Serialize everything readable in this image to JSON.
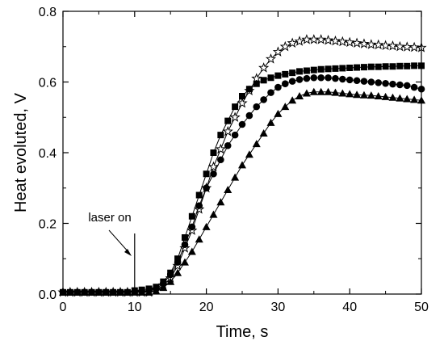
{
  "chart_data": {
    "type": "line",
    "title": "",
    "xlabel": "Time, s",
    "ylabel": "Heat evoluted, V",
    "xlim": [
      0,
      50
    ],
    "ylim": [
      0,
      0.8
    ],
    "xticks": [
      "0",
      "10",
      "20",
      "30",
      "40",
      "50"
    ],
    "yticks": [
      "0.0",
      "0.2",
      "0.4",
      "0.6",
      "0.8"
    ],
    "grid": false,
    "legend": "none",
    "annotations": [
      {
        "text": "laser on",
        "x": 10
      }
    ],
    "series": [
      {
        "marker": "star",
        "x": [
          0,
          1,
          2,
          3,
          4,
          5,
          6,
          7,
          8,
          9,
          10,
          11,
          12,
          13,
          14,
          15,
          16,
          17,
          18,
          19,
          20,
          21,
          22,
          23,
          24,
          25,
          26,
          27,
          28,
          29,
          30,
          31,
          32,
          33,
          34,
          35,
          36,
          37,
          38,
          39,
          40,
          41,
          42,
          43,
          44,
          45,
          46,
          47,
          48,
          49,
          50
        ],
        "values": [
          0.005,
          0.005,
          0.005,
          0.005,
          0.005,
          0.005,
          0.005,
          0.005,
          0.005,
          0.005,
          0.005,
          0.005,
          0.005,
          0.012,
          0.025,
          0.045,
          0.08,
          0.13,
          0.18,
          0.24,
          0.3,
          0.36,
          0.41,
          0.46,
          0.5,
          0.54,
          0.575,
          0.61,
          0.64,
          0.665,
          0.685,
          0.7,
          0.71,
          0.715,
          0.72,
          0.72,
          0.72,
          0.718,
          0.716,
          0.714,
          0.712,
          0.71,
          0.708,
          0.706,
          0.705,
          0.703,
          0.702,
          0.7,
          0.699,
          0.698,
          0.697
        ]
      },
      {
        "marker": "square",
        "x": [
          0,
          1,
          2,
          3,
          4,
          5,
          6,
          7,
          8,
          9,
          10,
          11,
          12,
          13,
          14,
          15,
          16,
          17,
          18,
          19,
          20,
          21,
          22,
          23,
          24,
          25,
          26,
          27,
          28,
          29,
          30,
          31,
          32,
          33,
          34,
          35,
          36,
          37,
          38,
          39,
          40,
          41,
          42,
          43,
          44,
          45,
          46,
          47,
          48,
          49,
          50
        ],
        "values": [
          0.005,
          0.005,
          0.005,
          0.005,
          0.005,
          0.005,
          0.005,
          0.005,
          0.005,
          0.005,
          0.01,
          0.012,
          0.015,
          0.02,
          0.035,
          0.06,
          0.1,
          0.16,
          0.22,
          0.28,
          0.34,
          0.4,
          0.45,
          0.49,
          0.53,
          0.56,
          0.58,
          0.595,
          0.605,
          0.612,
          0.618,
          0.622,
          0.626,
          0.63,
          0.632,
          0.634,
          0.636,
          0.637,
          0.638,
          0.639,
          0.64,
          0.641,
          0.642,
          0.643,
          0.643,
          0.644,
          0.644,
          0.645,
          0.645,
          0.646,
          0.646
        ]
      },
      {
        "marker": "circle",
        "x": [
          0,
          1,
          2,
          3,
          4,
          5,
          6,
          7,
          8,
          9,
          10,
          11,
          12,
          13,
          14,
          15,
          16,
          17,
          18,
          19,
          20,
          21,
          22,
          23,
          24,
          25,
          26,
          27,
          28,
          29,
          30,
          31,
          32,
          33,
          34,
          35,
          36,
          37,
          38,
          39,
          40,
          41,
          42,
          43,
          44,
          45,
          46,
          47,
          48,
          49,
          50
        ],
        "values": [
          0.005,
          0.005,
          0.005,
          0.005,
          0.005,
          0.005,
          0.005,
          0.005,
          0.005,
          0.005,
          0.007,
          0.008,
          0.01,
          0.015,
          0.03,
          0.055,
          0.09,
          0.14,
          0.19,
          0.25,
          0.3,
          0.34,
          0.38,
          0.42,
          0.45,
          0.48,
          0.505,
          0.53,
          0.55,
          0.57,
          0.585,
          0.595,
          0.602,
          0.607,
          0.61,
          0.612,
          0.612,
          0.612,
          0.61,
          0.608,
          0.606,
          0.604,
          0.602,
          0.6,
          0.598,
          0.596,
          0.594,
          0.592,
          0.59,
          0.585,
          0.58
        ]
      },
      {
        "marker": "triangle",
        "x": [
          0,
          1,
          2,
          3,
          4,
          5,
          6,
          7,
          8,
          9,
          10,
          11,
          12,
          13,
          14,
          15,
          16,
          17,
          18,
          19,
          20,
          21,
          22,
          23,
          24,
          25,
          26,
          27,
          28,
          29,
          30,
          31,
          32,
          33,
          34,
          35,
          36,
          37,
          38,
          39,
          40,
          41,
          42,
          43,
          44,
          45,
          46,
          47,
          48,
          49,
          50
        ],
        "values": [
          0.005,
          0.005,
          0.005,
          0.005,
          0.005,
          0.005,
          0.005,
          0.005,
          0.005,
          0.005,
          0.005,
          0.005,
          0.005,
          0.008,
          0.018,
          0.035,
          0.06,
          0.09,
          0.12,
          0.155,
          0.19,
          0.225,
          0.26,
          0.295,
          0.33,
          0.365,
          0.395,
          0.425,
          0.455,
          0.485,
          0.51,
          0.53,
          0.548,
          0.56,
          0.568,
          0.572,
          0.572,
          0.572,
          0.57,
          0.568,
          0.566,
          0.564,
          0.563,
          0.562,
          0.56,
          0.558,
          0.556,
          0.554,
          0.552,
          0.55,
          0.548
        ]
      }
    ]
  }
}
